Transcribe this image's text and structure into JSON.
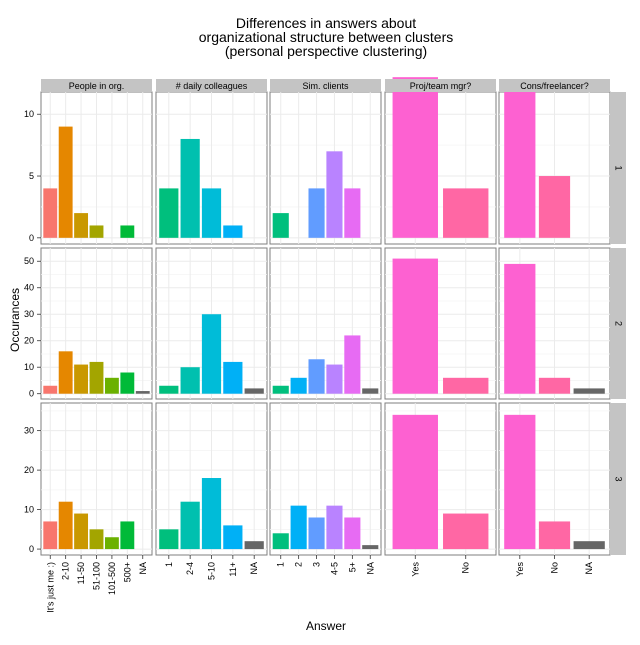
{
  "chart_data": {
    "type": "bar",
    "title": [
      "Differences in answers about",
      "organizational structure between clusters",
      "(personal perspective clustering)"
    ],
    "xlabel": "Answer",
    "ylabel": "Occurances",
    "layout": "facet-grid",
    "grid": true,
    "columns": [
      {
        "label": "People in org.",
        "categories": [
          "It's just me :)",
          "2-10",
          "11-50",
          "51-100",
          "101-500",
          "500+",
          "NA"
        ],
        "colors": [
          "#F8766D",
          "#E58700",
          "#C99800",
          "#A3A500",
          "#6BB100",
          "#00BA38",
          "#666666"
        ]
      },
      {
        "label": "# daily colleagues",
        "categories": [
          "1",
          "2-4",
          "5-10",
          "11+",
          "NA"
        ],
        "colors": [
          "#00BF7D",
          "#00C0AF",
          "#00BCD8",
          "#00B0F6",
          "#666666"
        ]
      },
      {
        "label": "Sim. clients",
        "categories": [
          "1",
          "2",
          "3",
          "4-5",
          "5+",
          "NA"
        ],
        "colors": [
          "#00BF7D",
          "#00B0F6",
          "#619CFF",
          "#B983FF",
          "#E76BF3",
          "#666666"
        ]
      },
      {
        "label": "Proj/team mgr?",
        "categories": [
          "Yes",
          "No"
        ],
        "colors": [
          "#FD61D1",
          "#FF67A4"
        ]
      },
      {
        "label": "Cons/freelancer?",
        "categories": [
          "Yes",
          "No",
          "NA"
        ],
        "colors": [
          "#FD61D1",
          "#FF67A4",
          "#666666"
        ]
      }
    ],
    "rows": [
      {
        "label": "1",
        "ylim": [
          -0.5,
          11.8
        ],
        "yticks": [
          0,
          5,
          10
        ],
        "values": [
          [
            4,
            9,
            2,
            1,
            0,
            1,
            0
          ],
          [
            4,
            8,
            4,
            1,
            0
          ],
          [
            2,
            0,
            4,
            7,
            4,
            0
          ],
          [
            13,
            4
          ],
          [
            12,
            5,
            0
          ]
        ]
      },
      {
        "label": "2",
        "ylim": [
          -2,
          55
        ],
        "yticks": [
          0,
          10,
          20,
          30,
          40,
          50
        ],
        "values": [
          [
            3,
            16,
            11,
            12,
            6,
            8,
            1
          ],
          [
            3,
            10,
            30,
            12,
            2
          ],
          [
            3,
            6,
            13,
            11,
            22,
            2
          ],
          [
            51,
            6
          ],
          [
            49,
            6,
            2
          ]
        ]
      },
      {
        "label": "3",
        "ylim": [
          -1.5,
          37
        ],
        "yticks": [
          0,
          10,
          20,
          30
        ],
        "values": [
          [
            7,
            12,
            9,
            5,
            3,
            7,
            0
          ],
          [
            5,
            12,
            18,
            6,
            2
          ],
          [
            4,
            11,
            8,
            11,
            8,
            1
          ],
          [
            34,
            9
          ],
          [
            34,
            7,
            2
          ]
        ]
      }
    ]
  }
}
